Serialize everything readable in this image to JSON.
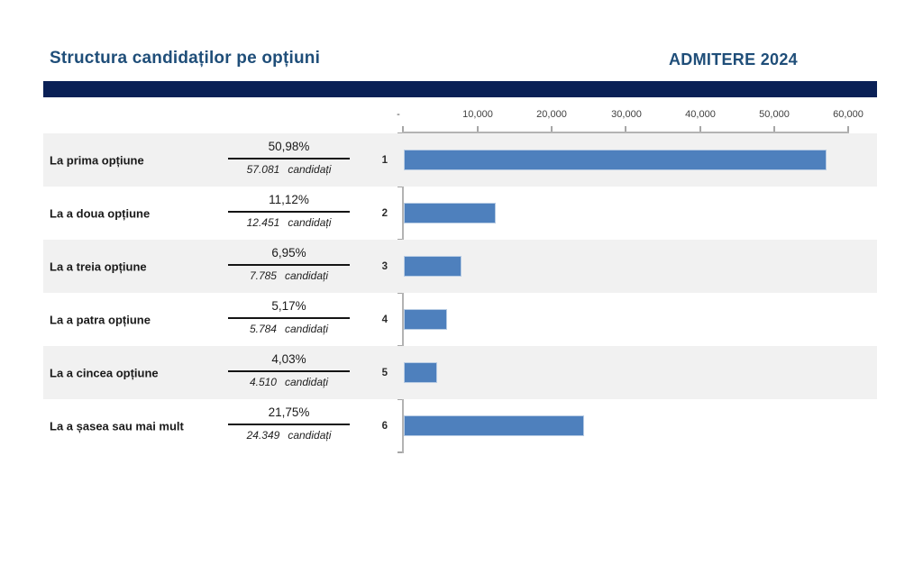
{
  "page": {
    "title": "Structura candidaților pe opțiuni",
    "header_right": "ADMITERE 2024"
  },
  "colors": {
    "title_blue": "#1f4e79",
    "navy_bar": "#0a2056",
    "bar_fill": "#4e80bd",
    "bar_border": "#b8cce4",
    "stripe_gray": "#f1f1f1",
    "axis_line": "#b3b3b3"
  },
  "axis": {
    "ticks": [
      "-",
      "10,000",
      "20,000",
      "30,000",
      "40,000",
      "50,000",
      "60,000"
    ],
    "max": 60000
  },
  "rows": [
    {
      "index": "1",
      "label": "La prima opțiune",
      "percent": "50,98%",
      "count": "57.081",
      "unit": "candidați",
      "value": 57081
    },
    {
      "index": "2",
      "label": "La a doua opțiune",
      "percent": "11,12%",
      "count": "12.451",
      "unit": "candidați",
      "value": 12451
    },
    {
      "index": "3",
      "label": "La a treia opțiune",
      "percent": "6,95%",
      "count": "7.785",
      "unit": "candidați",
      "value": 7785
    },
    {
      "index": "4",
      "label": "La a patra opțiune",
      "percent": "5,17%",
      "count": "5.784",
      "unit": "candidați",
      "value": 5784
    },
    {
      "index": "5",
      "label": "La a cincea opțiune",
      "percent": "4,03%",
      "count": "4.510",
      "unit": "candidați",
      "value": 4510
    },
    {
      "index": "6",
      "label": "La a șasea sau mai mult",
      "percent": "21,75%",
      "count": "24.349",
      "unit": "candidați",
      "value": 24349
    }
  ],
  "chart_data": {
    "type": "bar",
    "orientation": "horizontal",
    "title": "Structura candidaților pe opțiuni",
    "header_right": "ADMITERE 2024",
    "categories": [
      "1",
      "2",
      "3",
      "4",
      "5",
      "6"
    ],
    "category_labels": [
      "La prima opțiune",
      "La a doua opțiune",
      "La a treia opțiune",
      "La a patra opțiune",
      "La a cincea opțiune",
      "La a șasea sau mai mult"
    ],
    "values": [
      57081,
      12451,
      7785,
      5784,
      4510,
      24349
    ],
    "percentages": [
      "50,98%",
      "11,12%",
      "6,95%",
      "5,17%",
      "4,03%",
      "21,75%"
    ],
    "count_labels": [
      "57.081 candidați",
      "12.451 candidați",
      "7.785 candidați",
      "5.784 candidați",
      "4.510 candidați",
      "24.349 candidați"
    ],
    "xlim": [
      0,
      60000
    ],
    "x_ticks": [
      "-",
      "10,000",
      "20,000",
      "30,000",
      "40,000",
      "50,000",
      "60,000"
    ],
    "legend": "none",
    "grid": "off",
    "bar_color": "#4e80bd"
  }
}
